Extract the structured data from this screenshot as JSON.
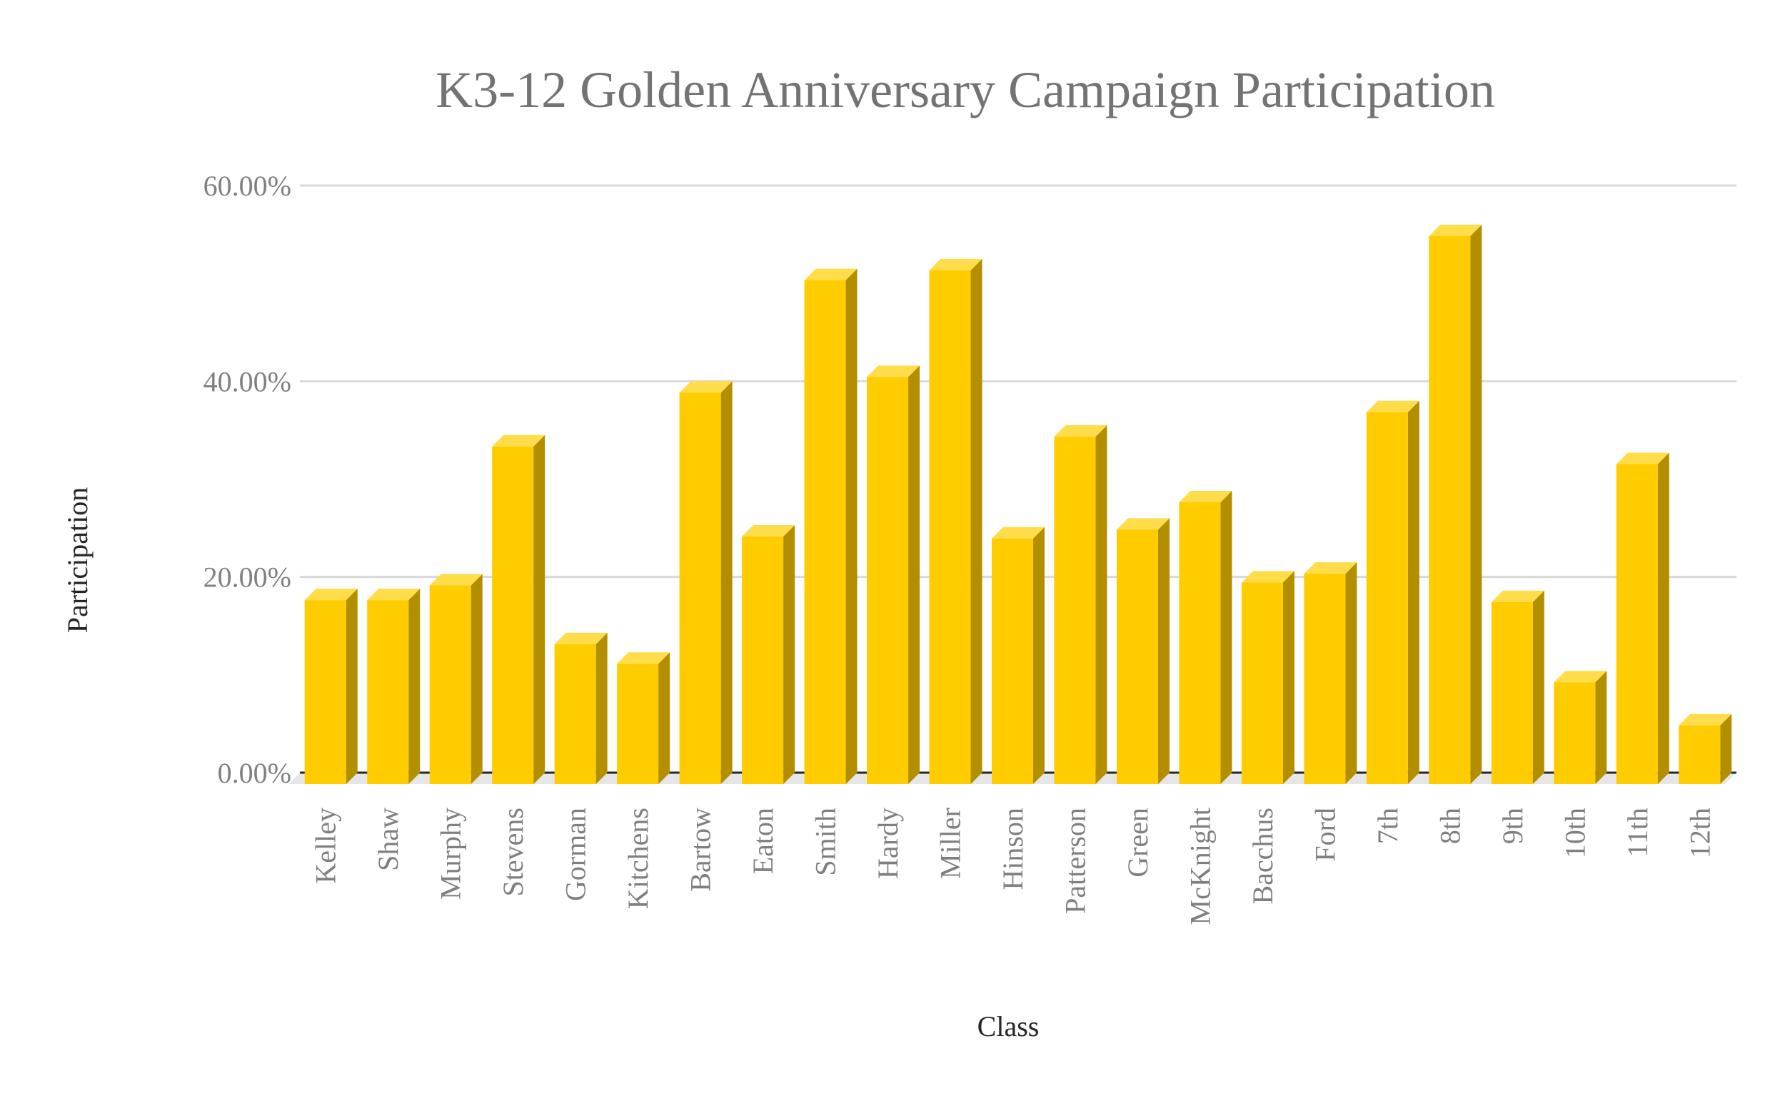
{
  "chart_data": {
    "type": "bar",
    "title": "K3-12 Golden Anniversary Campaign Participation",
    "xlabel": "Class",
    "ylabel": "Participation",
    "ylim": [
      0,
      60
    ],
    "y_ticks": [
      "0.00%",
      "20.00%",
      "40.00%",
      "60.00%"
    ],
    "grid": true,
    "legend": "none",
    "categories": [
      "Kelley",
      "Shaw",
      "Murphy",
      "Stevens",
      "Gorman",
      "Kitchens",
      "Bartow",
      "Eaton",
      "Smith",
      "Hardy",
      "Miller",
      "Hinson",
      "Patterson",
      "Green",
      "McKnight",
      "Bacchus",
      "Ford",
      "7th",
      "8th",
      "9th",
      "10th",
      "11th",
      "12th"
    ],
    "values": [
      18.8,
      18.8,
      20.3,
      34.5,
      14.3,
      12.3,
      40.0,
      25.3,
      51.5,
      41.6,
      52.5,
      25.1,
      35.5,
      26.0,
      28.8,
      20.6,
      21.5,
      38.0,
      56.0,
      18.6,
      10.4,
      32.7,
      6.0
    ],
    "colors": {
      "front": "#ffcc00",
      "top": "#ffdd4a",
      "side": "#b38f00",
      "floor": "#e6e6e6",
      "grid": "#d9d9d9",
      "baseline": "#262626"
    }
  }
}
